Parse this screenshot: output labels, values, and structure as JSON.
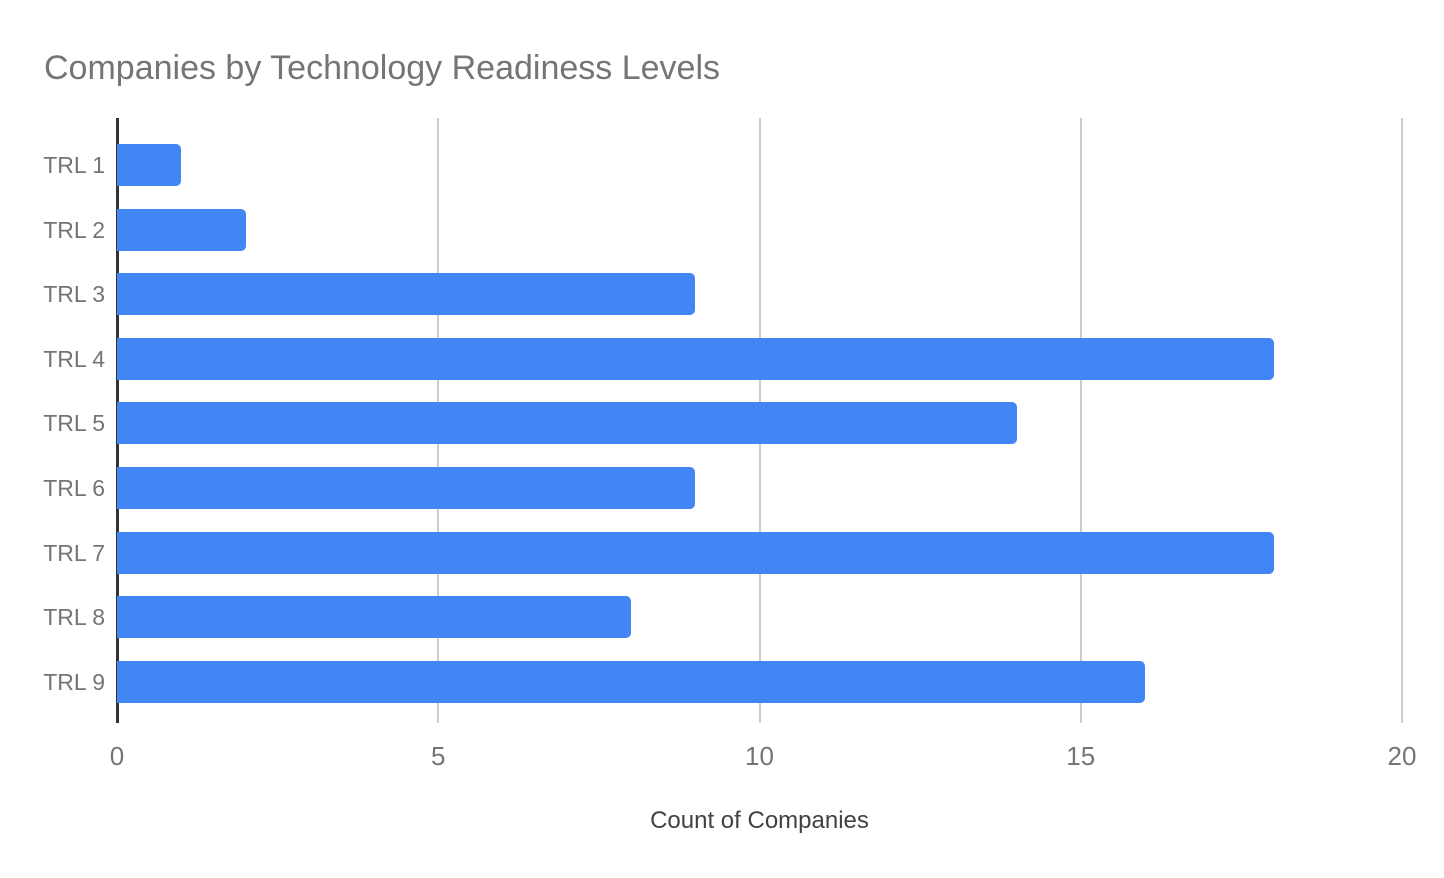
{
  "chart_data": {
    "type": "bar",
    "orientation": "horizontal",
    "title": "Companies by Technology Readiness Levels",
    "categories": [
      "TRL 1",
      "TRL 2",
      "TRL 3",
      "TRL 4",
      "TRL 5",
      "TRL 6",
      "TRL 7",
      "TRL 8",
      "TRL 9"
    ],
    "values": [
      1,
      2,
      9,
      18,
      14,
      9,
      18,
      8,
      16
    ],
    "xlabel": "Count of Companies",
    "ylabel": "",
    "xlim": [
      0,
      20
    ],
    "x_ticks": [
      0,
      5,
      10,
      15,
      20
    ],
    "grid": true,
    "legend": "none",
    "colors": {
      "bar": "#4285f4",
      "gridline": "#cccccc",
      "axis_line": "#333333",
      "title": "#757575",
      "tick_labels": "#757575",
      "axis_title": "#424242",
      "background": "#ffffff"
    }
  }
}
